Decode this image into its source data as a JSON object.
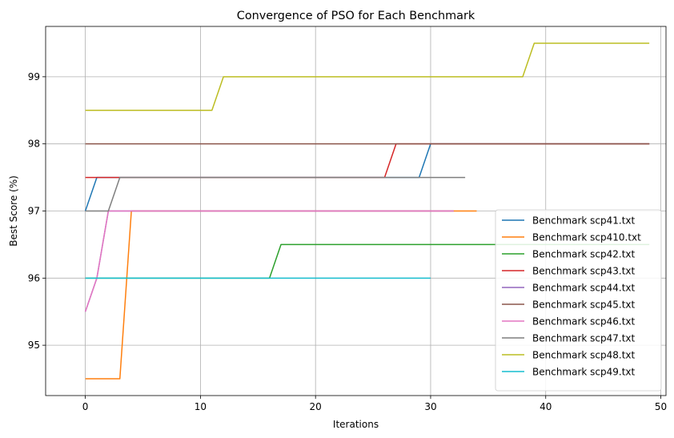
{
  "chart_data": {
    "type": "line",
    "title": "Convergence of PSO for Each Benchmark",
    "xlabel": "Iterations",
    "ylabel": "Best Score (%)",
    "xlim": [
      -3.45,
      50.45
    ],
    "ylim": [
      94.25,
      99.75
    ],
    "xticks": [
      0,
      10,
      20,
      30,
      40,
      50
    ],
    "yticks": [
      95,
      96,
      97,
      98,
      99
    ],
    "grid": true,
    "legend_position": "lower-right",
    "series": [
      {
        "name": "Benchmark scp41.txt",
        "color": "#1f77b4",
        "x": [
          0,
          1,
          29,
          30,
          49
        ],
        "y": [
          97.0,
          97.5,
          97.5,
          98.0,
          98.0
        ]
      },
      {
        "name": "Benchmark scp410.txt",
        "color": "#ff7f0e",
        "x": [
          0,
          3,
          4,
          34
        ],
        "y": [
          94.5,
          94.5,
          97.0,
          97.0
        ]
      },
      {
        "name": "Benchmark scp42.txt",
        "color": "#2ca02c",
        "x": [
          0,
          16,
          17,
          49
        ],
        "y": [
          96.0,
          96.0,
          96.5,
          96.5
        ]
      },
      {
        "name": "Benchmark scp43.txt",
        "color": "#d62728",
        "x": [
          0,
          26,
          27,
          49
        ],
        "y": [
          97.5,
          97.5,
          98.0,
          98.0
        ]
      },
      {
        "name": "Benchmark scp44.txt",
        "color": "#9467bd",
        "x": [
          0,
          1,
          2,
          32
        ],
        "y": [
          95.5,
          96.0,
          97.0,
          97.0
        ]
      },
      {
        "name": "Benchmark scp45.txt",
        "color": "#8c564b",
        "x": [
          0,
          49
        ],
        "y": [
          98.0,
          98.0
        ]
      },
      {
        "name": "Benchmark scp46.txt",
        "color": "#e377c2",
        "x": [
          0,
          1,
          2,
          32
        ],
        "y": [
          95.5,
          96.0,
          97.0,
          97.0
        ]
      },
      {
        "name": "Benchmark scp47.txt",
        "color": "#7f7f7f",
        "x": [
          0,
          2,
          3,
          33
        ],
        "y": [
          97.0,
          97.0,
          97.5,
          97.5
        ]
      },
      {
        "name": "Benchmark scp48.txt",
        "color": "#bcbd22",
        "x": [
          0,
          11,
          12,
          38,
          39,
          49
        ],
        "y": [
          98.5,
          98.5,
          99.0,
          99.0,
          99.5,
          99.5
        ]
      },
      {
        "name": "Benchmark scp49.txt",
        "color": "#17becf",
        "x": [
          0,
          30
        ],
        "y": [
          96.0,
          96.0
        ]
      }
    ]
  }
}
